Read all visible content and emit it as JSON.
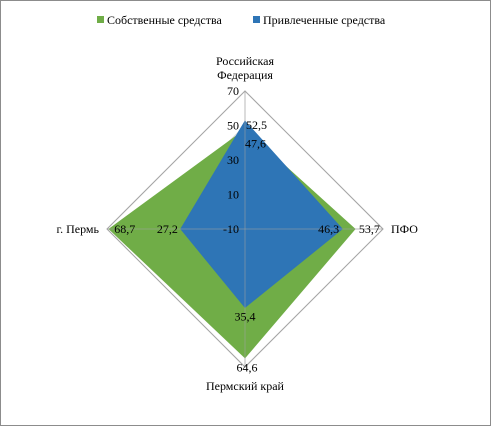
{
  "chart_data": {
    "type": "radar",
    "categories": [
      "Российская Федерация",
      "ПФО",
      "Пермский край",
      "г. Пермь"
    ],
    "category_lines": [
      [
        "Российская",
        "Федерация"
      ],
      [
        "ПФО"
      ],
      [
        "Пермский край"
      ],
      [
        "г. Пермь"
      ]
    ],
    "series": [
      {
        "name": "Собственные средства",
        "values": [
          47.6,
          53.7,
          64.6,
          68.7
        ],
        "color": "#70ad47"
      },
      {
        "name": "Привлеченные средства",
        "values": [
          52.5,
          46.3,
          35.4,
          27.2
        ],
        "color": "#2e75b6"
      }
    ],
    "axis": {
      "min": -10,
      "max": 70,
      "ticks": [
        -10,
        10,
        30,
        50,
        70
      ],
      "tick_labels": [
        "-10",
        "10",
        "30",
        "50",
        "70"
      ]
    },
    "data_labels": [
      [
        "47,6",
        "53,7",
        "64,6",
        "68,7"
      ],
      [
        "52,5",
        "46,3",
        "35,4",
        "27,2"
      ]
    ],
    "grid": true,
    "legend_position": "top"
  }
}
